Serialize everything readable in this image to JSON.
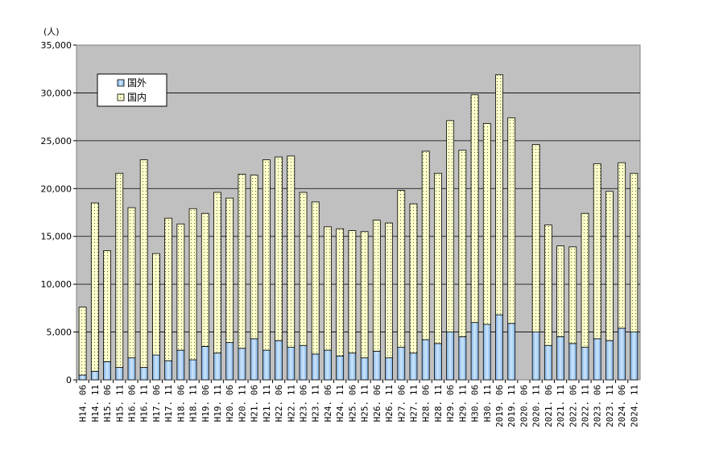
{
  "chart_data": {
    "type": "bar",
    "stacked": true,
    "title": "",
    "xlabel": "",
    "ylabel": "(人)",
    "ylim": [
      0,
      35000
    ],
    "yticks": [
      "0",
      "5,000",
      "10,000",
      "15,000",
      "20,000",
      "25,000",
      "30,000",
      "35,000"
    ],
    "grid": true,
    "legend_position": "top-left",
    "categories": [
      "H14. 06",
      "H14. 11",
      "H15. 06",
      "H15. 11",
      "H16. 06",
      "H16. 11",
      "H17. 06",
      "H17. 11",
      "H18. 06",
      "H18. 11",
      "H19. 06",
      "H19. 11",
      "H20. 06",
      "H20. 11",
      "H21. 06",
      "H21. 11",
      "H22. 06",
      "H22. 11",
      "H23. 06",
      "H23. 11",
      "H24. 06",
      "H24. 11",
      "H25. 06",
      "H25. 11",
      "H26. 06",
      "H26. 11",
      "H27. 06",
      "H27. 11",
      "H28. 06",
      "H28. 11",
      "H29. 06",
      "H29. 11",
      "H30. 06",
      "H30. 11",
      "2019. 06",
      "2019. 11",
      "2020. 06",
      "2020. 11",
      "2021. 06",
      "2021. 11",
      "2022. 06",
      "2022. 11",
      "2023. 06",
      "2023. 11",
      "2024. 06",
      "2024. 11"
    ],
    "series": [
      {
        "name": "国外",
        "color": "#9ec8ee",
        "values": [
          500,
          900,
          1900,
          1300,
          2300,
          1300,
          2600,
          2000,
          3100,
          2100,
          3500,
          2800,
          3900,
          3300,
          4300,
          3100,
          4100,
          3400,
          3600,
          2700,
          3100,
          2500,
          2800,
          2300,
          3000,
          2300,
          3400,
          2800,
          4200,
          3800,
          5000,
          4500,
          6000,
          5800,
          6800,
          5900,
          0,
          5000,
          3600,
          4500,
          3800,
          3400,
          4300,
          4100,
          5400,
          5000
        ]
      },
      {
        "name": "国内",
        "color": "#ffffcc",
        "values": [
          7100,
          17600,
          11600,
          20300,
          15700,
          21700,
          10600,
          14900,
          13200,
          15800,
          13900,
          16800,
          15100,
          18200,
          17100,
          19900,
          19200,
          20000,
          16000,
          15900,
          12900,
          13300,
          12800,
          13200,
          13700,
          14100,
          16400,
          15600,
          19700,
          17800,
          22100,
          19500,
          23800,
          21000,
          25100,
          21500,
          0,
          19600,
          12600,
          9500,
          10100,
          14000,
          18300,
          15600,
          17300,
          16600
        ]
      }
    ]
  }
}
